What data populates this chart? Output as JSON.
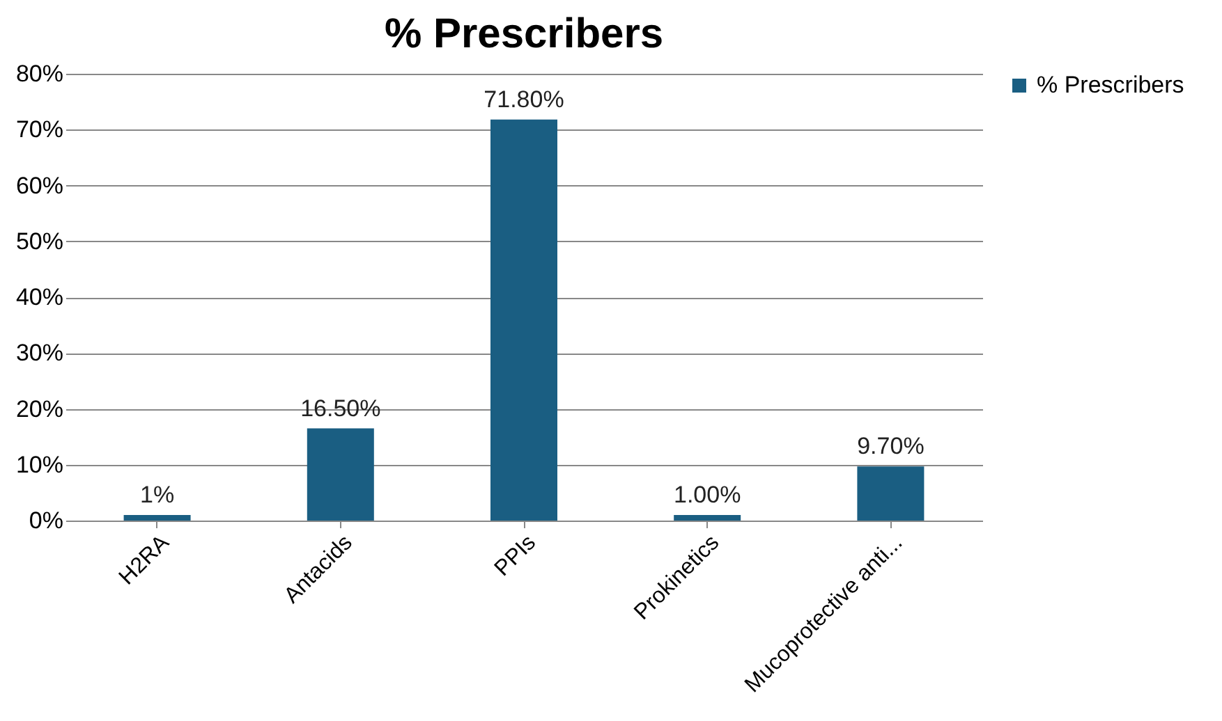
{
  "chart_data": {
    "type": "bar",
    "title": "% Prescribers",
    "categories": [
      "H2RA",
      "Antacids",
      "PPIs",
      "Prokinetics",
      "Mucoprotective anti..."
    ],
    "series": [
      {
        "name": "% Prescribers",
        "color": "#1a5e82",
        "values": [
          1,
          16.5,
          71.8,
          1.0,
          9.7
        ],
        "value_labels": [
          "1%",
          "16.50%",
          "71.80%",
          "1.00%",
          "9.70%"
        ]
      }
    ],
    "ylim": [
      0,
      80
    ],
    "yticks": [
      {
        "value": 0,
        "label": "0%"
      },
      {
        "value": 10,
        "label": "10%"
      },
      {
        "value": 20,
        "label": "20%"
      },
      {
        "value": 30,
        "label": "30%"
      },
      {
        "value": 40,
        "label": "40%"
      },
      {
        "value": 50,
        "label": "50%"
      },
      {
        "value": 60,
        "label": "60%"
      },
      {
        "value": 70,
        "label": "70%"
      },
      {
        "value": 80,
        "label": "80%"
      }
    ],
    "grid": "y",
    "legend": "right"
  }
}
